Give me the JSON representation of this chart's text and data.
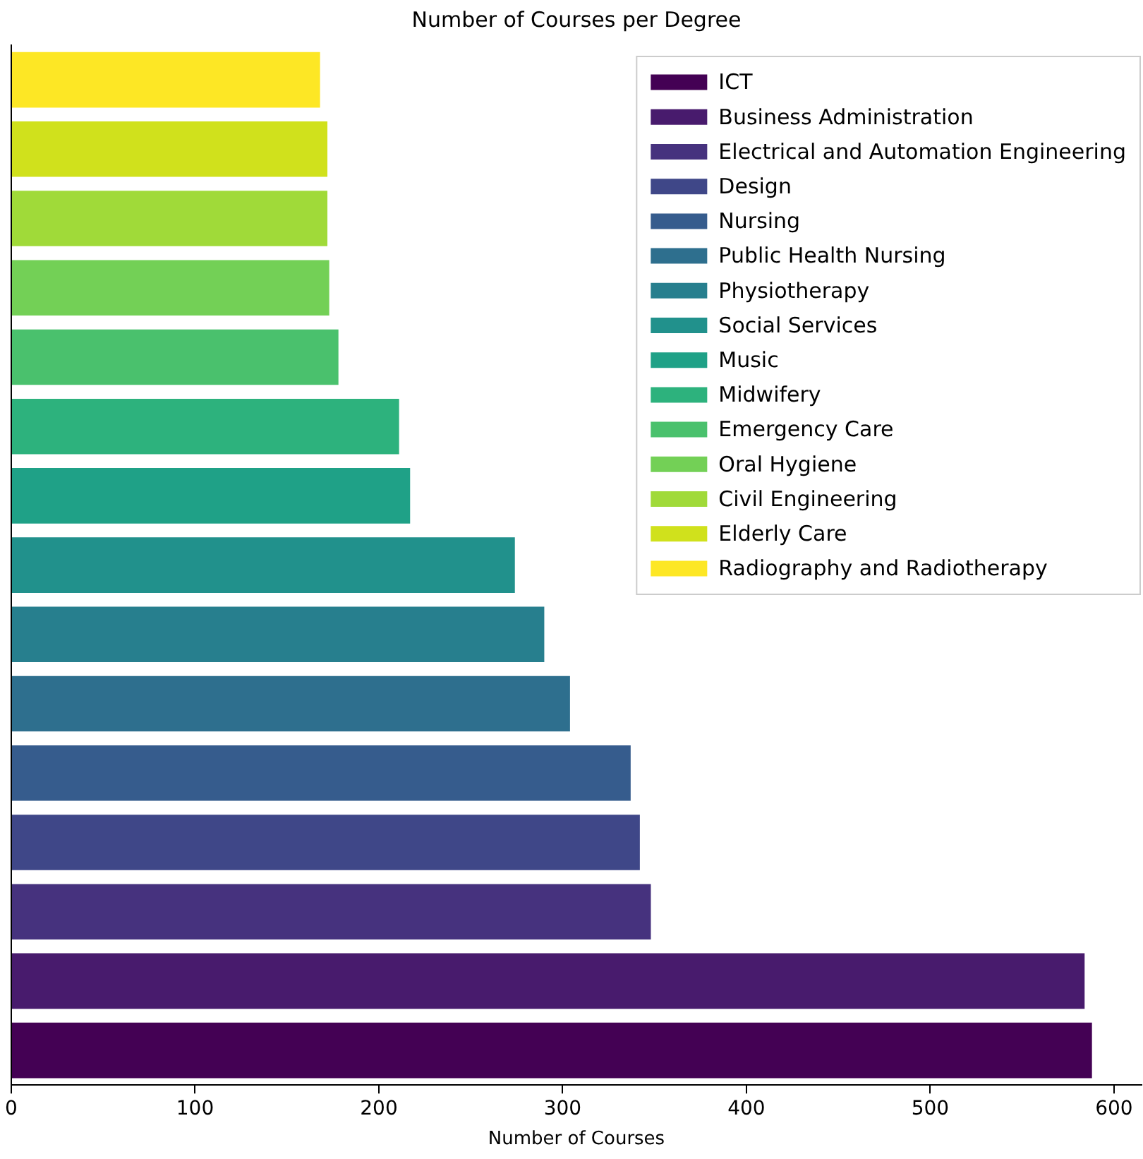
{
  "chart_data": {
    "type": "bar",
    "orientation": "horizontal",
    "title": "Number of Courses per Degree",
    "xlabel": "Number of Courses",
    "categories": [
      null,
      null,
      null,
      null,
      null,
      null,
      null,
      null,
      null,
      null,
      null,
      null,
      null,
      null,
      null
    ],
    "series": [
      {
        "name": "ICT",
        "color": "#440154",
        "values": [
          null,
          null,
          null,
          null,
          null,
          null,
          null,
          null,
          null,
          null,
          null,
          null,
          null,
          null,
          588
        ]
      },
      {
        "name": "Business Administration",
        "color": "#481b6d",
        "values": [
          null,
          null,
          null,
          null,
          null,
          null,
          null,
          null,
          null,
          null,
          null,
          null,
          null,
          584,
          null
        ]
      },
      {
        "name": "Electrical and Automation Engineering",
        "color": "#46327e",
        "values": [
          null,
          null,
          null,
          null,
          null,
          null,
          null,
          null,
          null,
          null,
          null,
          null,
          348,
          null,
          null
        ]
      },
      {
        "name": "Design",
        "color": "#3f4788",
        "values": [
          null,
          null,
          null,
          null,
          null,
          null,
          null,
          null,
          null,
          null,
          null,
          342,
          null,
          null,
          null
        ]
      },
      {
        "name": "Nursing",
        "color": "#365c8d",
        "values": [
          null,
          null,
          null,
          null,
          null,
          null,
          null,
          null,
          null,
          null,
          337,
          null,
          null,
          null,
          null
        ]
      },
      {
        "name": "Public Health Nursing",
        "color": "#2e6f8e",
        "values": [
          null,
          null,
          null,
          null,
          null,
          null,
          null,
          null,
          null,
          304,
          null,
          null,
          null,
          null,
          null
        ]
      },
      {
        "name": "Physiotherapy",
        "color": "#277f8e",
        "values": [
          null,
          null,
          null,
          null,
          null,
          null,
          null,
          null,
          290,
          null,
          null,
          null,
          null,
          null,
          null
        ]
      },
      {
        "name": "Social Services",
        "color": "#21918c",
        "values": [
          null,
          null,
          null,
          null,
          null,
          null,
          null,
          274,
          null,
          null,
          null,
          null,
          null,
          null,
          null
        ]
      },
      {
        "name": "Music",
        "color": "#1fa187",
        "values": [
          null,
          null,
          null,
          null,
          null,
          null,
          217,
          null,
          null,
          null,
          null,
          null,
          null,
          null,
          null
        ]
      },
      {
        "name": "Midwifery",
        "color": "#2db27d",
        "values": [
          null,
          null,
          null,
          null,
          null,
          211,
          null,
          null,
          null,
          null,
          null,
          null,
          null,
          null,
          null
        ]
      },
      {
        "name": "Emergency Care",
        "color": "#4ac16d",
        "values": [
          null,
          null,
          null,
          null,
          178,
          null,
          null,
          null,
          null,
          null,
          null,
          null,
          null,
          null,
          null
        ]
      },
      {
        "name": "Oral Hygiene",
        "color": "#73d056",
        "values": [
          null,
          null,
          null,
          173,
          null,
          null,
          null,
          null,
          null,
          null,
          null,
          null,
          null,
          null,
          null
        ]
      },
      {
        "name": "Civil Engineering",
        "color": "#a0da39",
        "values": [
          null,
          null,
          172,
          null,
          null,
          null,
          null,
          null,
          null,
          null,
          null,
          null,
          null,
          null,
          null
        ]
      },
      {
        "name": "Elderly Care",
        "color": "#d0e11c",
        "values": [
          null,
          172,
          null,
          null,
          null,
          null,
          null,
          null,
          null,
          null,
          null,
          null,
          null,
          null,
          null
        ]
      },
      {
        "name": "Radiography and Radiotherapy",
        "color": "#fde725",
        "values": [
          168,
          null,
          null,
          null,
          null,
          null,
          null,
          null,
          null,
          null,
          null,
          null,
          null,
          null,
          null
        ]
      }
    ],
    "xlim": [
      0,
      615
    ],
    "xticks": [
      0,
      100,
      200,
      300,
      400,
      500,
      600
    ],
    "grid": false,
    "legend": "top right",
    "tick_labels": "x"
  }
}
